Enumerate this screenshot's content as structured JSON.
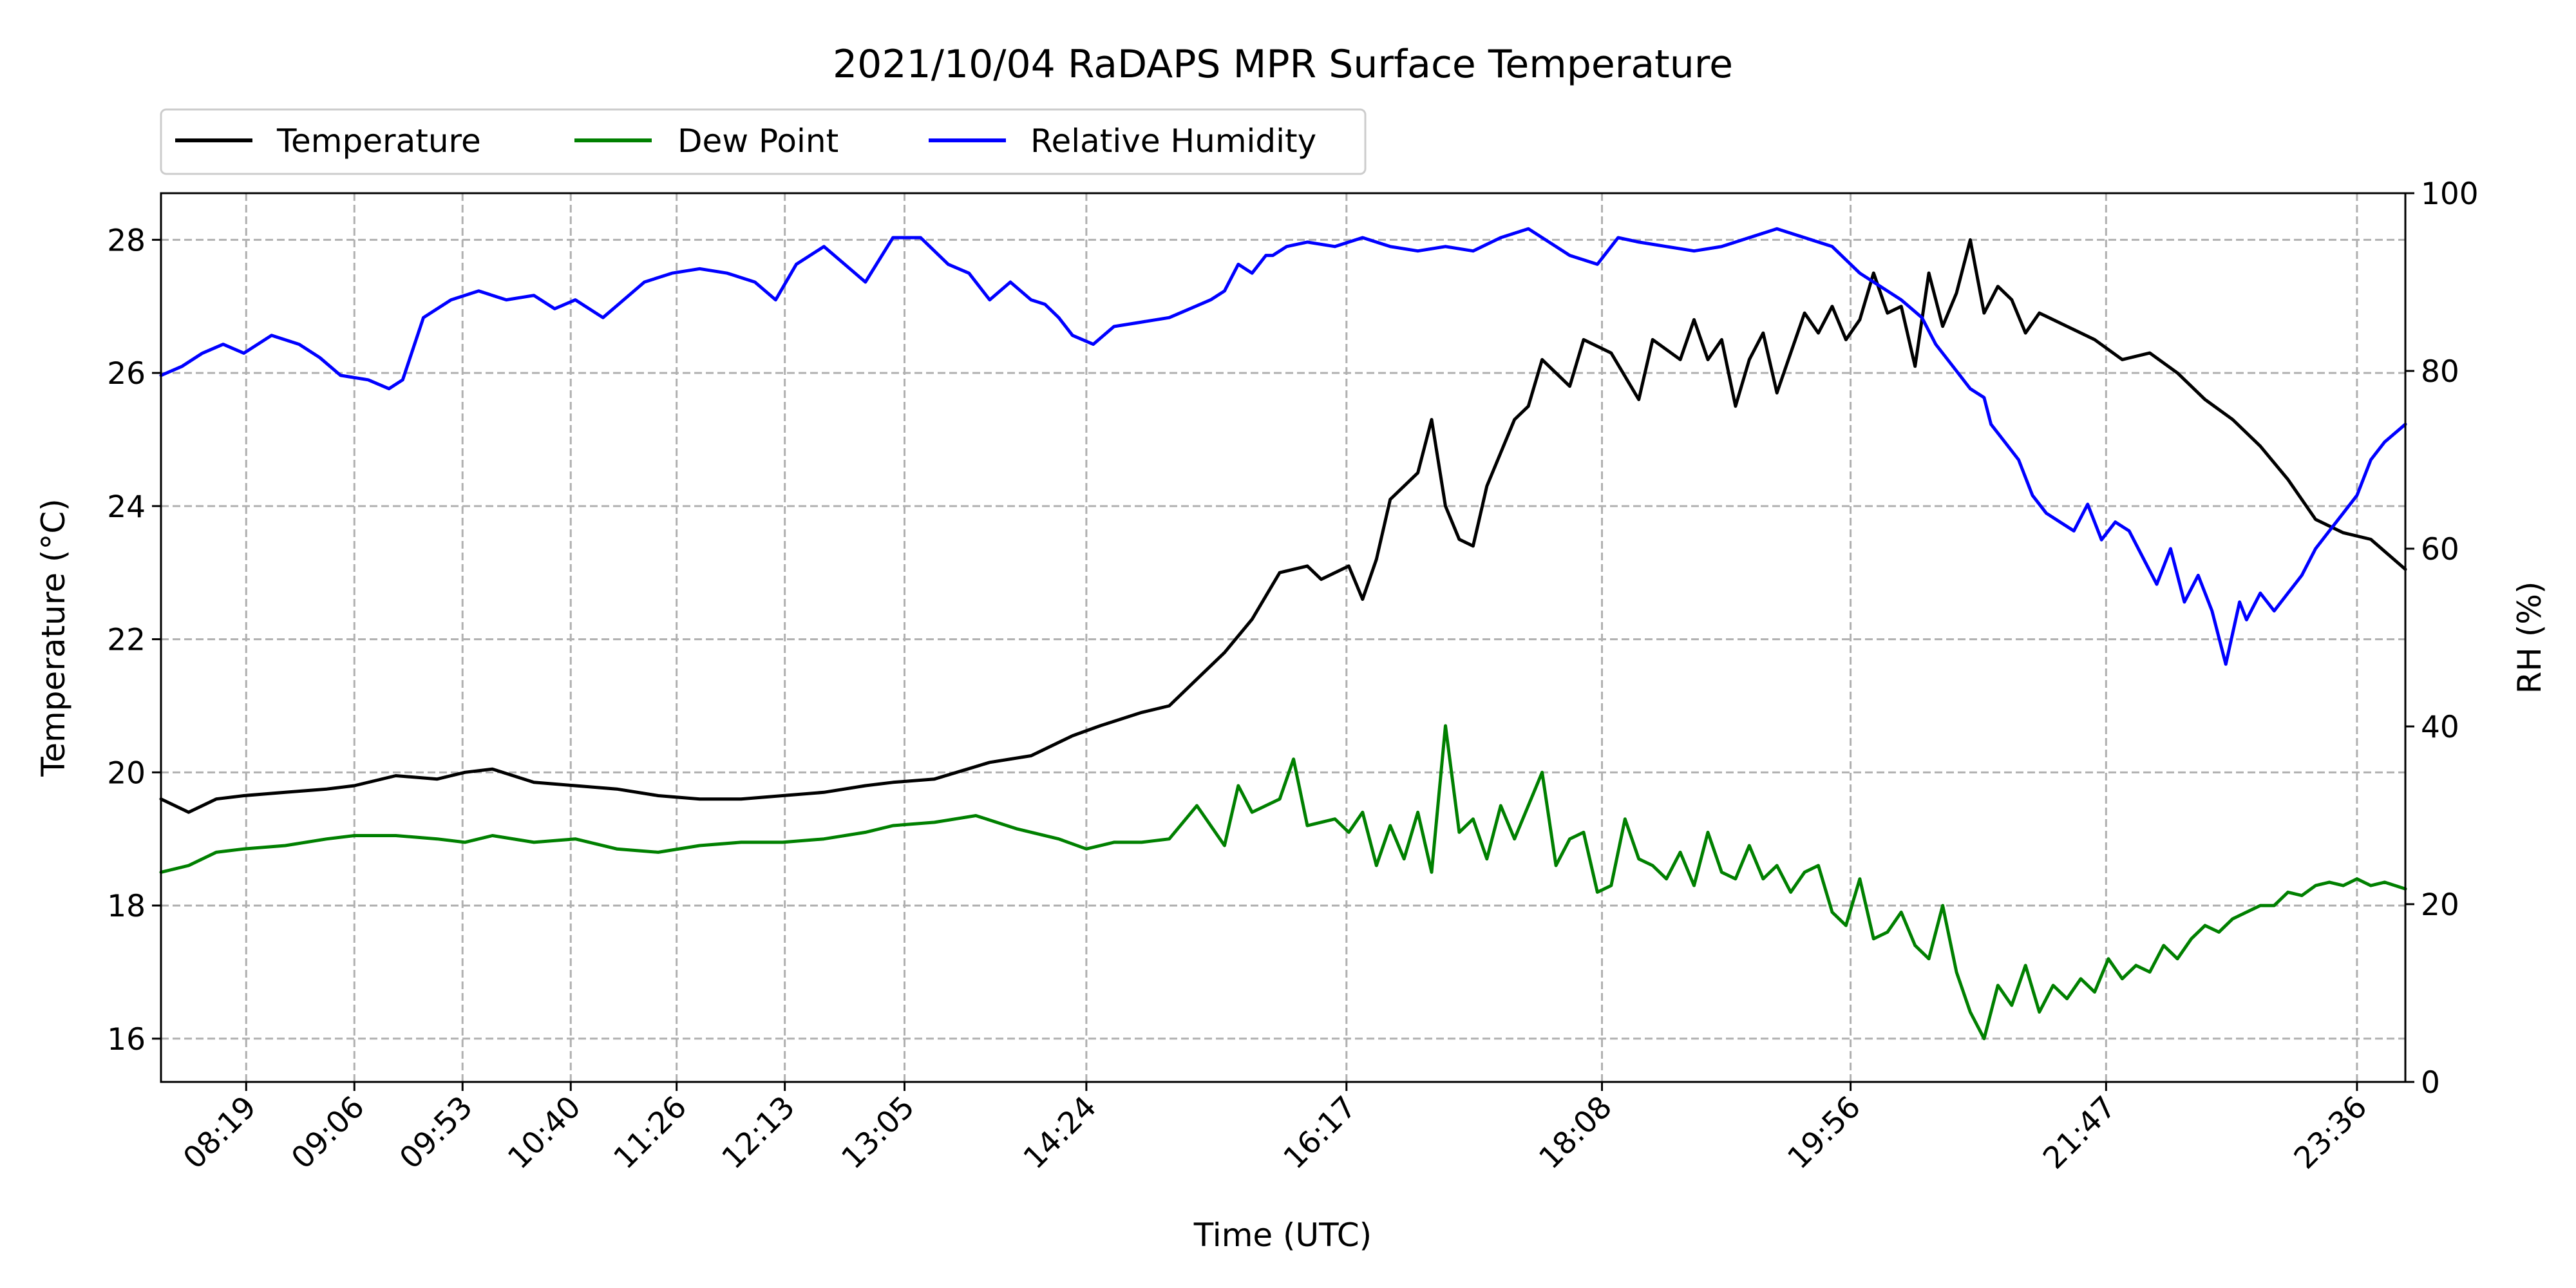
{
  "chart_data": {
    "type": "line",
    "title": "2021/10/04 RaDAPS MPR Surface Temperature",
    "xlabel": "Time (UTC)",
    "ylabel_left": "Temperature (°C)",
    "ylabel_right": "RH (%)",
    "x_ticks": [
      "08:19",
      "09:06",
      "09:53",
      "10:40",
      "11:26",
      "12:13",
      "13:05",
      "14:24",
      "16:17",
      "18:08",
      "19:56",
      "21:47",
      "23:36"
    ],
    "x_tick_hours": [
      8.3167,
      9.1,
      9.8833,
      10.6667,
      11.4333,
      12.2167,
      13.0833,
      14.4,
      16.2833,
      18.1333,
      19.9333,
      21.7833,
      23.6
    ],
    "xlim": [
      7.7,
      23.95
    ],
    "ylim_left": [
      15.35,
      28.7
    ],
    "yticks_left": [
      16,
      18,
      20,
      22,
      24,
      26,
      28
    ],
    "ylim_right": [
      0,
      100
    ],
    "yticks_right": [
      0,
      20,
      40,
      60,
      80,
      100
    ],
    "grid": true,
    "legend_position": "top-left, above plot",
    "series": [
      {
        "name": "Temperature",
        "axis": "left",
        "color": "#000000",
        "x": [
          7.7,
          7.9,
          8.1,
          8.3,
          8.6,
          8.9,
          9.1,
          9.4,
          9.7,
          9.9,
          10.1,
          10.4,
          10.7,
          11.0,
          11.3,
          11.6,
          11.9,
          12.2,
          12.5,
          12.8,
          13.0,
          13.3,
          13.7,
          14.0,
          14.3,
          14.5,
          14.8,
          15.0,
          15.2,
          15.4,
          15.6,
          15.8,
          16.0,
          16.1,
          16.3,
          16.4,
          16.5,
          16.6,
          16.8,
          16.9,
          17.0,
          17.1,
          17.2,
          17.3,
          17.5,
          17.6,
          17.7,
          17.9,
          18.0,
          18.2,
          18.4,
          18.5,
          18.7,
          18.8,
          18.9,
          19.0,
          19.1,
          19.2,
          19.3,
          19.4,
          19.5,
          19.6,
          19.7,
          19.8,
          19.9,
          20.0,
          20.1,
          20.2,
          20.3,
          20.4,
          20.5,
          20.6,
          20.7,
          20.8,
          20.9,
          21.0,
          21.1,
          21.2,
          21.3,
          21.5,
          21.7,
          21.9,
          22.1,
          22.3,
          22.5,
          22.7,
          22.9,
          23.1,
          23.3,
          23.5,
          23.7,
          23.95
        ],
        "y": [
          19.6,
          19.4,
          19.6,
          19.65,
          19.7,
          19.75,
          19.8,
          19.95,
          19.9,
          20.0,
          20.05,
          19.85,
          19.8,
          19.75,
          19.65,
          19.6,
          19.6,
          19.65,
          19.7,
          19.8,
          19.85,
          19.9,
          20.15,
          20.25,
          20.55,
          20.7,
          20.9,
          21.0,
          21.4,
          21.8,
          22.3,
          23.0,
          23.1,
          22.9,
          23.1,
          22.6,
          23.2,
          24.1,
          24.5,
          25.3,
          24.0,
          23.5,
          23.4,
          24.3,
          25.3,
          25.5,
          26.2,
          25.8,
          26.5,
          26.3,
          25.6,
          26.5,
          26.2,
          26.8,
          26.2,
          26.5,
          25.5,
          26.2,
          26.6,
          25.7,
          26.3,
          26.9,
          26.6,
          27.0,
          26.5,
          26.8,
          27.5,
          26.9,
          27.0,
          26.1,
          27.5,
          26.7,
          27.2,
          28.0,
          26.9,
          27.3,
          27.1,
          26.6,
          26.9,
          26.7,
          26.5,
          26.2,
          26.3,
          26.0,
          25.6,
          25.3,
          24.9,
          24.4,
          23.8,
          23.6,
          23.5,
          23.05
        ]
      },
      {
        "name": "Dew Point",
        "axis": "left",
        "color": "#008000",
        "x": [
          7.7,
          7.9,
          8.1,
          8.3,
          8.6,
          8.9,
          9.1,
          9.4,
          9.7,
          9.9,
          10.1,
          10.4,
          10.7,
          11.0,
          11.3,
          11.6,
          11.9,
          12.2,
          12.5,
          12.8,
          13.0,
          13.3,
          13.6,
          13.9,
          14.2,
          14.4,
          14.6,
          14.8,
          15.0,
          15.2,
          15.4,
          15.5,
          15.6,
          15.8,
          15.9,
          16.0,
          16.2,
          16.3,
          16.4,
          16.5,
          16.6,
          16.7,
          16.8,
          16.9,
          17.0,
          17.1,
          17.2,
          17.3,
          17.4,
          17.5,
          17.7,
          17.8,
          17.9,
          18.0,
          18.1,
          18.2,
          18.3,
          18.4,
          18.5,
          18.6,
          18.7,
          18.8,
          18.9,
          19.0,
          19.1,
          19.2,
          19.3,
          19.4,
          19.5,
          19.6,
          19.7,
          19.8,
          19.9,
          20.0,
          20.1,
          20.2,
          20.3,
          20.4,
          20.5,
          20.6,
          20.7,
          20.8,
          20.9,
          21.0,
          21.1,
          21.2,
          21.3,
          21.4,
          21.5,
          21.6,
          21.7,
          21.8,
          21.9,
          22.0,
          22.1,
          22.2,
          22.3,
          22.4,
          22.5,
          22.6,
          22.7,
          22.8,
          22.9,
          23.0,
          23.1,
          23.2,
          23.3,
          23.4,
          23.5,
          23.6,
          23.7,
          23.8,
          23.95
        ],
        "y": [
          18.5,
          18.6,
          18.8,
          18.85,
          18.9,
          19.0,
          19.05,
          19.05,
          19.0,
          18.95,
          19.05,
          18.95,
          19.0,
          18.85,
          18.8,
          18.9,
          18.95,
          18.95,
          19.0,
          19.1,
          19.2,
          19.25,
          19.35,
          19.15,
          19.0,
          18.85,
          18.95,
          18.95,
          19.0,
          19.5,
          18.9,
          19.8,
          19.4,
          19.6,
          20.2,
          19.2,
          19.3,
          19.1,
          19.4,
          18.6,
          19.2,
          18.7,
          19.4,
          18.5,
          20.7,
          19.1,
          19.3,
          18.7,
          19.5,
          19.0,
          20.0,
          18.6,
          19.0,
          19.1,
          18.2,
          18.3,
          19.3,
          18.7,
          18.6,
          18.4,
          18.8,
          18.3,
          19.1,
          18.5,
          18.4,
          18.9,
          18.4,
          18.6,
          18.2,
          18.5,
          18.6,
          17.9,
          17.7,
          18.4,
          17.5,
          17.6,
          17.9,
          17.4,
          17.2,
          18.0,
          17.0,
          16.4,
          16.0,
          16.8,
          16.5,
          17.1,
          16.4,
          16.8,
          16.6,
          16.9,
          16.7,
          17.2,
          16.9,
          17.1,
          17.0,
          17.4,
          17.2,
          17.5,
          17.7,
          17.6,
          17.8,
          17.9,
          18.0,
          18.0,
          18.2,
          18.15,
          18.3,
          18.35,
          18.3,
          18.4,
          18.3,
          18.35,
          18.25
        ]
      },
      {
        "name": "Relative Humidity",
        "axis": "right",
        "color": "#0000ff",
        "x": [
          7.7,
          7.85,
          8.0,
          8.15,
          8.3,
          8.5,
          8.7,
          8.85,
          9.0,
          9.2,
          9.35,
          9.45,
          9.6,
          9.8,
          10.0,
          10.2,
          10.4,
          10.55,
          10.7,
          10.9,
          11.05,
          11.2,
          11.4,
          11.6,
          11.8,
          12.0,
          12.15,
          12.3,
          12.5,
          12.65,
          12.8,
          13.0,
          13.2,
          13.4,
          13.55,
          13.7,
          13.85,
          14.0,
          14.1,
          14.2,
          14.3,
          14.45,
          14.6,
          14.8,
          15.0,
          15.15,
          15.3,
          15.4,
          15.5,
          15.6,
          15.7,
          15.75,
          15.85,
          16.0,
          16.2,
          16.4,
          16.6,
          16.8,
          17.0,
          17.2,
          17.4,
          17.6,
          17.8,
          17.9,
          18.1,
          18.25,
          18.4,
          18.6,
          18.8,
          19.0,
          19.2,
          19.4,
          19.6,
          19.8,
          20.0,
          20.2,
          20.3,
          20.45,
          20.55,
          20.7,
          20.8,
          20.9,
          20.95,
          21.05,
          21.15,
          21.25,
          21.35,
          21.45,
          21.55,
          21.65,
          21.75,
          21.85,
          21.95,
          22.05,
          22.15,
          22.25,
          22.35,
          22.45,
          22.55,
          22.65,
          22.75,
          22.8,
          22.9,
          23.0,
          23.1,
          23.2,
          23.3,
          23.4,
          23.5,
          23.6,
          23.7,
          23.8,
          23.95
        ],
        "y": [
          79.5,
          80.5,
          82.0,
          83.0,
          82.0,
          84.0,
          83.0,
          81.5,
          79.5,
          79.0,
          78.0,
          79.0,
          86.0,
          88.0,
          89.0,
          88.0,
          88.5,
          87.0,
          88.0,
          86.0,
          88.0,
          90.0,
          91.0,
          91.5,
          91.0,
          90.0,
          88.0,
          92.0,
          94.0,
          92.0,
          90.0,
          95.0,
          95.0,
          92.0,
          91.0,
          88.0,
          90.0,
          88.0,
          87.5,
          86.0,
          84.0,
          83.0,
          85.0,
          85.5,
          86.0,
          87.0,
          88.0,
          89.0,
          92.0,
          91.0,
          93.0,
          93.0,
          94.0,
          94.5,
          94.0,
          95.0,
          94.0,
          93.5,
          94.0,
          93.5,
          95.0,
          96.0,
          94.0,
          93.0,
          92.0,
          95.0,
          94.5,
          94.0,
          93.5,
          94.0,
          95.0,
          96.0,
          95.0,
          94.0,
          91.0,
          89.0,
          88.0,
          86.0,
          83.0,
          80.0,
          78.0,
          77.0,
          74.0,
          72.0,
          70.0,
          66.0,
          64.0,
          63.0,
          62.0,
          65.0,
          61.0,
          63.0,
          62.0,
          59.0,
          56.0,
          60.0,
          54.0,
          57.0,
          53.0,
          47.0,
          54.0,
          52.0,
          55.0,
          53.0,
          55.0,
          57.0,
          60.0,
          62.0,
          64.0,
          66.0,
          70.0,
          72.0,
          74.0
        ]
      }
    ]
  }
}
